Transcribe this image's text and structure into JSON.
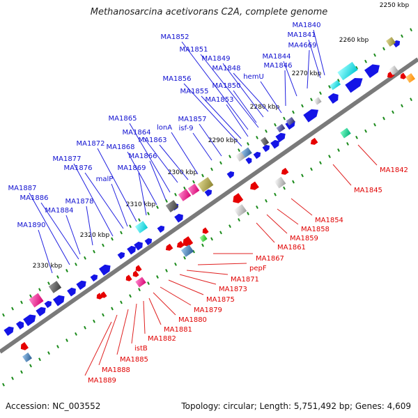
{
  "title": "Methanosarcina acetivorans C2A, complete genome",
  "footer": {
    "accession": "Accession: NC_003552",
    "topology": "Topology: circular; Length: 5,751,492 bp; Genes: 4,609"
  },
  "kbp_labels": [
    "2250 kbp",
    "2260 kbp",
    "2270 kbp",
    "2280 kbp",
    "2290 kbp",
    "2300 kbp",
    "2310 kbp",
    "2320 kbp",
    "2330 kbp"
  ],
  "forward_genes": [
    "MA1840",
    "MA1841",
    "MA4669",
    "MA1844",
    "MA1846",
    "hemU",
    "MA1848",
    "MA1849",
    "MA1850",
    "MA1851",
    "MA1852",
    "MA1853",
    "MA1855",
    "MA1856",
    "MA1857",
    "isf-9",
    "lonA",
    "MA1863",
    "MA1864",
    "MA1865",
    "MA1866",
    "MA1868",
    "MA1869",
    "MA1872",
    "malP",
    "MA1876",
    "MA1877",
    "MA1878",
    "MA1884",
    "MA1886",
    "MA1887",
    "MA1890"
  ],
  "reverse_genes": [
    "MA1842",
    "MA1845",
    "MA1854",
    "MA1858",
    "MA1859",
    "MA1861",
    "MA1867",
    "pepF",
    "MA1871",
    "MA1873",
    "MA1875",
    "MA1879",
    "MA1880",
    "MA1881",
    "MA1882",
    "istB",
    "MA1885",
    "MA1888",
    "MA1889"
  ],
  "colors": {
    "forward_label": "#1010d0",
    "reverse_label": "#e00000",
    "forward_gene": "#1414e6",
    "reverse_gene": "#e60000",
    "axis": "#7a7a7a",
    "tick": "#1a8a1a"
  }
}
